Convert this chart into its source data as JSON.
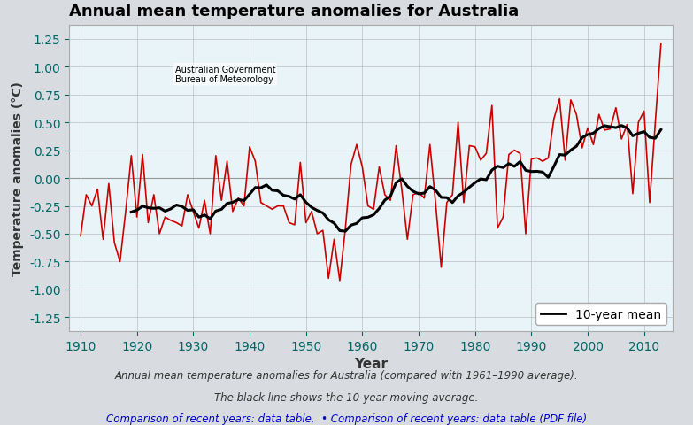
{
  "title": "Annual mean temperature anomalies for Australia",
  "xlabel": "Year",
  "ylabel": "Temperature anomalies (°C)",
  "background_color": "#e8f4f8",
  "plot_background": "#e8f4f8",
  "line_color": "#cc0000",
  "mean_line_color": "#000000",
  "ylim": [
    -1.375,
    1.375
  ],
  "yticks": [
    -1.25,
    -1.0,
    -0.75,
    -0.5,
    -0.25,
    0.0,
    0.25,
    0.5,
    0.75,
    1.0,
    1.25
  ],
  "xlim": [
    1908,
    2015
  ],
  "xticks": [
    1910,
    1920,
    1930,
    1940,
    1950,
    1960,
    1970,
    1980,
    1990,
    2000,
    2010
  ],
  "caption_line1": "Annual mean temperature anomalies for Australia (compared with 1961–1990 average).",
  "caption_line2": "The black line shows the 10-year moving average.",
  "caption_color": "#333333",
  "footer_bg": "#d8dce0",
  "years": [
    1910,
    1911,
    1912,
    1913,
    1914,
    1915,
    1916,
    1917,
    1918,
    1919,
    1920,
    1921,
    1922,
    1923,
    1924,
    1925,
    1926,
    1927,
    1928,
    1929,
    1930,
    1931,
    1932,
    1933,
    1934,
    1935,
    1936,
    1937,
    1938,
    1939,
    1940,
    1941,
    1942,
    1943,
    1944,
    1945,
    1946,
    1947,
    1948,
    1949,
    1950,
    1951,
    1952,
    1953,
    1954,
    1955,
    1956,
    1957,
    1958,
    1959,
    1960,
    1961,
    1962,
    1963,
    1964,
    1965,
    1966,
    1967,
    1968,
    1969,
    1970,
    1971,
    1972,
    1973,
    1974,
    1975,
    1976,
    1977,
    1978,
    1979,
    1980,
    1981,
    1982,
    1983,
    1984,
    1985,
    1986,
    1987,
    1988,
    1989,
    1990,
    1991,
    1992,
    1993,
    1994,
    1995,
    1996,
    1997,
    1998,
    1999,
    2000,
    2001,
    2002,
    2003,
    2004,
    2005,
    2006,
    2007,
    2008,
    2009,
    2010,
    2011,
    2012,
    2013
  ],
  "anomalies": [
    -0.52,
    -0.15,
    -0.25,
    -0.1,
    -0.55,
    -0.05,
    -0.58,
    -0.75,
    -0.3,
    0.2,
    -0.35,
    0.21,
    -0.4,
    -0.15,
    -0.5,
    -0.35,
    -0.38,
    -0.4,
    -0.43,
    -0.15,
    -0.3,
    -0.45,
    -0.2,
    -0.5,
    0.2,
    -0.2,
    0.15,
    -0.3,
    -0.18,
    -0.25,
    0.28,
    0.15,
    -0.22,
    -0.25,
    -0.28,
    -0.25,
    -0.25,
    -0.4,
    -0.42,
    0.14,
    -0.4,
    -0.3,
    -0.5,
    -0.47,
    -0.9,
    -0.55,
    -0.92,
    -0.45,
    0.12,
    0.3,
    0.1,
    -0.25,
    -0.28,
    0.1,
    -0.15,
    -0.2,
    0.29,
    -0.1,
    -0.55,
    -0.15,
    -0.13,
    -0.18,
    0.3,
    -0.22,
    -0.8,
    -0.22,
    -0.15,
    0.5,
    -0.22,
    0.29,
    0.28,
    0.16,
    0.22,
    0.65,
    -0.45,
    -0.35,
    0.21,
    0.25,
    0.22,
    -0.5,
    0.17,
    0.18,
    0.15,
    0.18,
    0.53,
    0.71,
    0.16,
    0.7,
    0.57,
    0.27,
    0.45,
    0.3,
    0.57,
    0.43,
    0.44,
    0.63,
    0.35,
    0.48,
    -0.14,
    0.5,
    0.6,
    -0.22,
    0.5,
    1.2
  ]
}
